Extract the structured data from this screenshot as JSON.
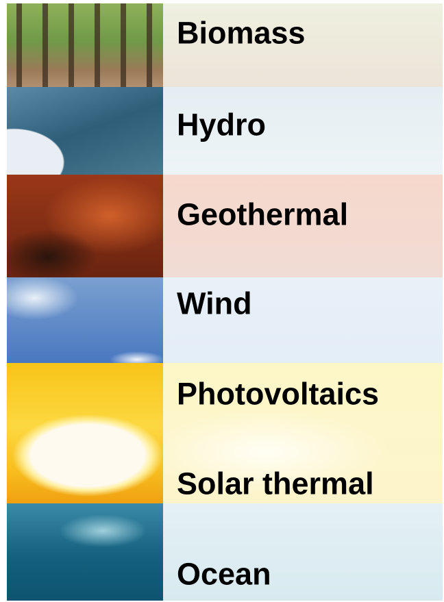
{
  "labels": [
    "Biomass",
    "Hydro",
    "Geothermal",
    "Wind",
    "Photovoltaics",
    "Solar thermal",
    "Ocean"
  ]
}
